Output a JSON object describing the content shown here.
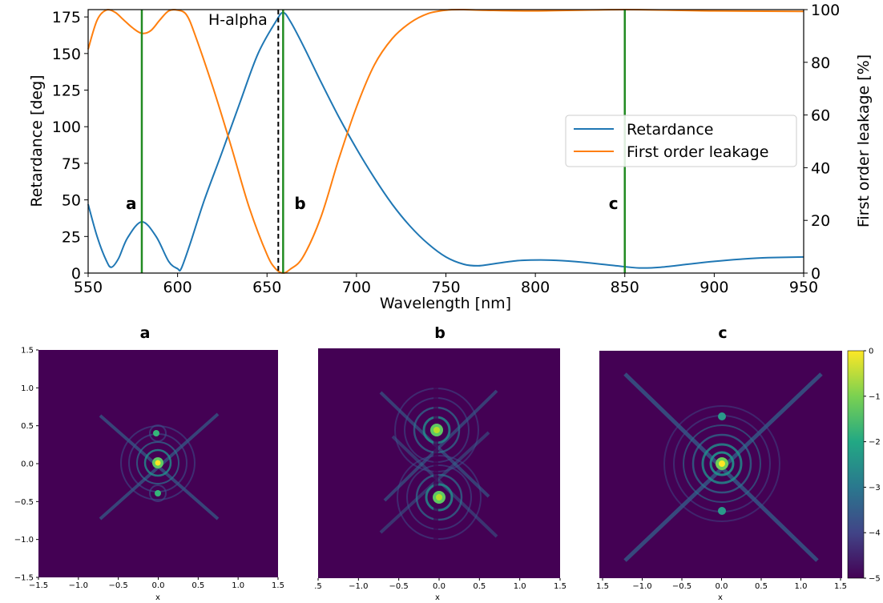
{
  "chart_data": [
    {
      "type": "line",
      "xlabel": "Wavelength [nm]",
      "ylabel": "Retardance [deg]",
      "y2label": "First order leakage [%]",
      "xlim": [
        550,
        950
      ],
      "ylim": [
        0,
        180
      ],
      "y2lim": [
        0,
        100
      ],
      "xticks": [
        "550",
        "600",
        "650",
        "700",
        "750",
        "800",
        "850",
        "900",
        "950"
      ],
      "yticks": [
        "0",
        "25",
        "50",
        "75",
        "100",
        "125",
        "150",
        "175"
      ],
      "y2ticks": [
        "0",
        "20",
        "40",
        "60",
        "80",
        "100"
      ],
      "grid": false,
      "legend_position": "center-right",
      "series": [
        {
          "name": "Retardance",
          "axis": "left",
          "color": "#1f77b4",
          "x": [
            550,
            555,
            560,
            563,
            567,
            572,
            580,
            588,
            595,
            600,
            602,
            607,
            615,
            625,
            635,
            645,
            655,
            659,
            663,
            670,
            680,
            690,
            700,
            710,
            720,
            730,
            740,
            750,
            760,
            768,
            775,
            790,
            803,
            815,
            830,
            845,
            858,
            870,
            885,
            900,
            915,
            930,
            950
          ],
          "y": [
            47,
            25,
            9,
            4,
            10,
            24,
            35,
            25,
            8,
            3,
            3,
            20,
            50,
            83,
            117,
            150,
            172,
            178,
            172,
            156,
            131,
            107,
            85,
            65,
            47,
            32,
            20,
            11,
            6,
            5,
            6,
            8.5,
            9,
            8.5,
            7,
            5,
            3.5,
            4,
            6,
            8,
            9.5,
            10.5,
            11
          ]
        },
        {
          "name": "First order leakage",
          "axis": "right",
          "color": "#ff7f0e",
          "x": [
            550,
            555,
            560,
            565,
            570,
            575,
            580,
            585,
            590,
            595,
            600,
            605,
            610,
            620,
            630,
            640,
            650,
            655,
            659,
            663,
            670,
            680,
            690,
            700,
            710,
            720,
            730,
            740,
            750,
            760,
            770,
            800,
            850,
            900,
            950
          ],
          "y": [
            85,
            96,
            99.8,
            99,
            96,
            93,
            91,
            92,
            96,
            99.5,
            99.8,
            98,
            90,
            70,
            48,
            25,
            7,
            1.5,
            0,
            1.5,
            6,
            21,
            43,
            63,
            79,
            89,
            95,
            98.5,
            99.8,
            100,
            99.8,
            99.5,
            100,
            99.5,
            99.3
          ]
        }
      ],
      "vertical_markers": [
        {
          "label": "a",
          "x": 580,
          "color": "#228b22"
        },
        {
          "label": "b",
          "x": 659,
          "color": "#228b22"
        },
        {
          "label": "c",
          "x": 850,
          "color": "#228b22"
        }
      ],
      "reference_line": {
        "label": "H-alpha",
        "x": 656.3
      }
    },
    {
      "type": "heatmap",
      "title": "a",
      "xlabel": "x",
      "xticks": [
        "−1.5",
        "−1.0",
        "−0.5",
        "0.0",
        "0.5",
        "1.0",
        "1.5"
      ],
      "yticks": [
        "−1.5",
        "−1.0",
        "−0.5",
        "0.0",
        "0.5",
        "1.0",
        "1.5"
      ],
      "spots": [
        {
          "x": 0.0,
          "y": 0.0,
          "level": 0
        },
        {
          "x": 0.0,
          "y": 0.4,
          "level": -2.2
        },
        {
          "x": 0.0,
          "y": -0.4,
          "level": -2.2
        }
      ]
    },
    {
      "type": "heatmap",
      "title": "b",
      "xlabel": "x",
      "xticks": [
        ".5",
        "−1.0",
        "−0.5",
        "0.0",
        "0.5",
        "1.0",
        "1.5"
      ],
      "spots": [
        {
          "x": 0.0,
          "y": 0.45,
          "level": -0.4
        },
        {
          "x": 0.0,
          "y": -0.45,
          "level": -0.4
        }
      ]
    },
    {
      "type": "heatmap",
      "title": "c",
      "xlabel": "x",
      "xticks": [
        "1.5",
        "−1.0",
        "−0.5",
        "0.0",
        "0.5",
        "1.0",
        "1.5"
      ],
      "colorbar_ticks": [
        "0",
        "−1",
        "−2",
        "−3",
        "−4",
        "−5"
      ],
      "colorbar_range": [
        -5,
        0
      ],
      "spots": [
        {
          "x": 0.0,
          "y": 0.0,
          "level": 0
        },
        {
          "x": 0.0,
          "y": 0.65,
          "level": -2.3
        },
        {
          "x": 0.0,
          "y": -0.65,
          "level": -2.3
        }
      ]
    }
  ],
  "colors": {
    "background_dark": "#440154",
    "marker_green": "#228b22",
    "retardance_blue": "#1f77b4",
    "leakage_orange": "#ff7f0e"
  }
}
